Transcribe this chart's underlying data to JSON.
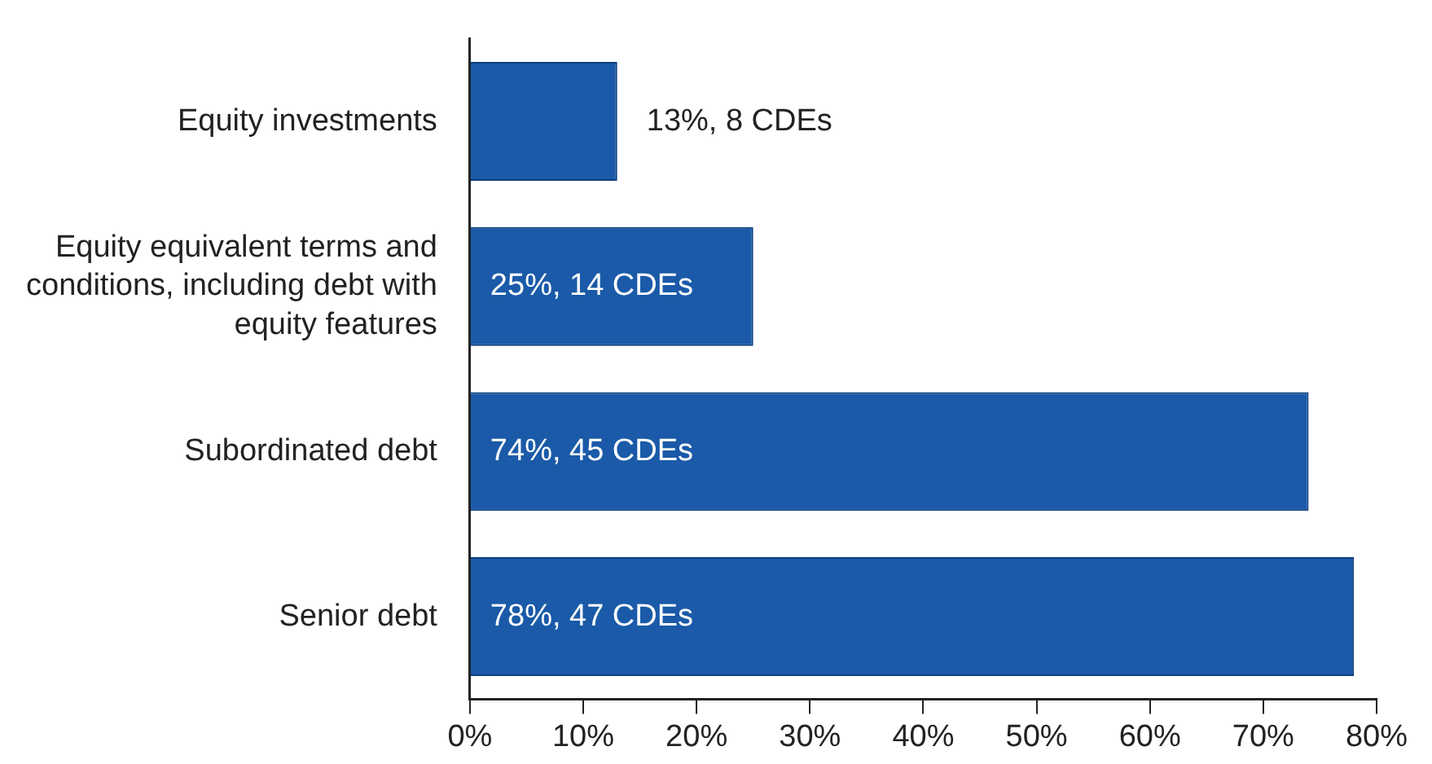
{
  "chart_data": {
    "type": "bar",
    "orientation": "horizontal",
    "categories": [
      "Equity investments",
      "Equity equivalent terms and conditions, including debt with equity features",
      "Subordinated debt",
      "Senior debt"
    ],
    "values": [
      13,
      25,
      74,
      78
    ],
    "color": "#1a5aa8",
    "value_labels": [
      "13%, 8 CDEs",
      "25%, 14 CDEs",
      "74%, 45 CDEs",
      "78%, 47 CDEs"
    ],
    "xlim": [
      0,
      80
    ],
    "xticks": [
      {
        "value": 0,
        "label": "0%"
      },
      {
        "value": 10,
        "label": "10%"
      },
      {
        "value": 20,
        "label": "20%"
      },
      {
        "value": 30,
        "label": "30%"
      },
      {
        "value": 40,
        "label": "40%"
      },
      {
        "value": 50,
        "label": "50%"
      },
      {
        "value": 60,
        "label": "60%"
      },
      {
        "value": 70,
        "label": "70%"
      },
      {
        "value": 80,
        "label": "80%"
      }
    ],
    "grid": false,
    "legend": false
  }
}
